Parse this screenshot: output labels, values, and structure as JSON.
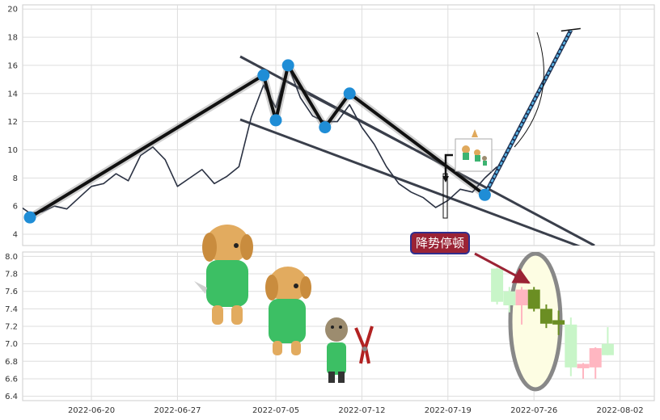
{
  "chart_data": [
    {
      "type": "line",
      "panel": "price",
      "ylim": [
        3.2,
        20.3
      ],
      "y_ticks": [
        4,
        6,
        8,
        10,
        12,
        14,
        16,
        18,
        20
      ],
      "grid": true,
      "series": [
        {
          "x": [
            "2022-06-14",
            "2022-06-15",
            "2022-06-16",
            "2022-06-17",
            "2022-06-18",
            "2022-06-19",
            "2022-06-20",
            "2022-06-21",
            "2022-06-22",
            "2022-06-23",
            "2022-06-24",
            "2022-06-25",
            "2022-06-26",
            "2022-06-27",
            "2022-06-28",
            "2022-06-29",
            "2022-06-30",
            "2022-07-01",
            "2022-07-02",
            "2022-07-03",
            "2022-07-04",
            "2022-07-05",
            "2022-07-06",
            "2022-07-07",
            "2022-07-08",
            "2022-07-09",
            "2022-07-10",
            "2022-07-11",
            "2022-07-12",
            "2022-07-13",
            "2022-07-14",
            "2022-07-15",
            "2022-07-16",
            "2022-07-17",
            "2022-07-18",
            "2022-07-19",
            "2022-07-20",
            "2022-07-21",
            "2022-07-22",
            "2022-07-23"
          ],
          "values": [
            6.1,
            5.5,
            5.6,
            6.0,
            5.8,
            6.6,
            7.4,
            7.6,
            8.3,
            7.8,
            9.6,
            10.2,
            9.3,
            7.4,
            8.0,
            8.6,
            7.6,
            8.1,
            8.8,
            12.3,
            14.6,
            13.0,
            16.0,
            13.7,
            12.4,
            12.0,
            12.0,
            13.2,
            11.6,
            10.4,
            8.8,
            7.6,
            7.0,
            6.6,
            5.9,
            6.4,
            7.2,
            7.0,
            8.0,
            8.8
          ]
        }
      ],
      "pivots": [
        {
          "x": "2022-06-15",
          "y": 5.2
        },
        {
          "x": "2022-07-04",
          "y": 15.3
        },
        {
          "x": "2022-07-05",
          "y": 12.1
        },
        {
          "x": "2022-07-06",
          "y": 16.0
        },
        {
          "x": "2022-07-09",
          "y": 11.6
        },
        {
          "x": "2022-07-11",
          "y": 14.0
        },
        {
          "x": "2022-07-22",
          "y": 6.8
        }
      ],
      "projection": [
        {
          "x": "2022-07-22",
          "y": 6.8
        },
        {
          "x": "2022-07-29",
          "y": 18.5
        }
      ]
    },
    {
      "type": "candlestick",
      "panel": "lower",
      "ylim": [
        6.35,
        8.05
      ],
      "y_ticks": [
        6.4,
        6.6,
        6.8,
        7.0,
        7.2,
        7.4,
        7.6,
        7.8,
        8.0
      ],
      "x_ticks": [
        "2022-06-20",
        "2022-06-27",
        "2022-07-05",
        "2022-07-12",
        "2022-07-19",
        "2022-07-26",
        "2022-08-02"
      ],
      "candles": [
        {
          "x": "2022-07-23",
          "open": 7.48,
          "high": 7.87,
          "low": 7.45,
          "close": 7.86,
          "color": "#c8f5c8"
        },
        {
          "x": "2022-07-24",
          "open": 7.44,
          "high": 7.65,
          "low": 7.36,
          "close": 7.6,
          "color": "#c8f5c8"
        },
        {
          "x": "2022-07-25",
          "open": 7.62,
          "high": 7.65,
          "low": 7.22,
          "close": 7.44,
          "color": "#ffb6c1"
        },
        {
          "x": "2022-07-26",
          "open": 7.62,
          "high": 7.65,
          "low": 7.37,
          "close": 7.4,
          "color": "#6b8e23"
        },
        {
          "x": "2022-07-27",
          "open": 7.4,
          "high": 7.45,
          "low": 7.18,
          "close": 7.23,
          "color": "#6b8e23"
        },
        {
          "x": "2022-07-28",
          "open": 7.27,
          "high": 7.38,
          "low": 7.1,
          "close": 7.22,
          "color": "#6b8e23"
        },
        {
          "x": "2022-07-29",
          "open": 6.73,
          "high": 7.3,
          "low": 6.63,
          "close": 7.22,
          "color": "#c8f5c8"
        },
        {
          "x": "2022-07-30",
          "open": 6.77,
          "high": 6.78,
          "low": 6.6,
          "close": 6.72,
          "color": "#ffb6c1"
        },
        {
          "x": "2022-07-31",
          "open": 6.95,
          "high": 6.96,
          "low": 6.6,
          "close": 6.73,
          "color": "#ffb6c1"
        },
        {
          "x": "2022-08-01",
          "open": 6.87,
          "high": 7.19,
          "low": 6.87,
          "close": 7.0,
          "color": "#c8f5c8"
        }
      ],
      "annotation": "降势停顿"
    }
  ],
  "colors": {
    "price_line": "#2a3142",
    "pivot": "#1f8dd6",
    "trend": "#3a3f4b",
    "annotation_bg": "#9b2335",
    "annotation_border": "#2f2f8f",
    "arrow": "#9b2335",
    "ellipse_fill": "#fdfde3",
    "ellipse_stroke": "#888888"
  },
  "icons": [
    "dog-holding-shovel-icon",
    "dog-holding-trowel-icon",
    "dog-with-pliers-icon",
    "pliers-icon",
    "mini-dogs-icon"
  ]
}
